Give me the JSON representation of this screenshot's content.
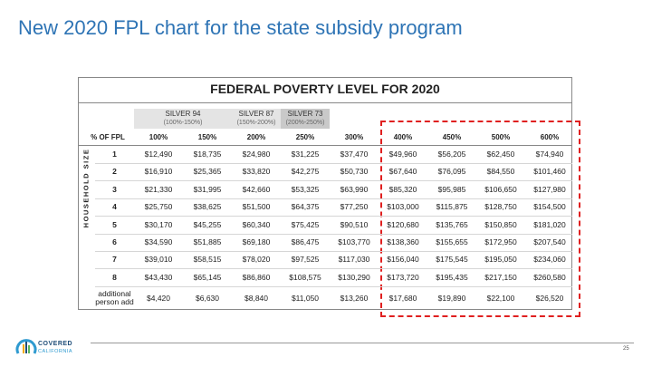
{
  "title": "New 2020 FPL chart for the state subsidy program",
  "table": {
    "heading": "FEDERAL POVERTY LEVEL FOR 2020",
    "side_label": "HOUSEHOLD SIZE",
    "bands": [
      {
        "name": "SILVER 94",
        "range": "(100%-150%)"
      },
      {
        "name": "SILVER 87",
        "range": "(150%-200%)"
      },
      {
        "name": "SILVER 73",
        "range": "(200%-250%)"
      }
    ],
    "columns": [
      "% OF FPL",
      "100%",
      "150%",
      "200%",
      "250%",
      "300%",
      "400%",
      "450%",
      "500%",
      "600%"
    ],
    "rows": [
      [
        "1",
        "$12,490",
        "$18,735",
        "$24,980",
        "$31,225",
        "$37,470",
        "$49,960",
        "$56,205",
        "$62,450",
        "$74,940"
      ],
      [
        "2",
        "$16,910",
        "$25,365",
        "$33,820",
        "$42,275",
        "$50,730",
        "$67,640",
        "$76,095",
        "$84,550",
        "$101,460"
      ],
      [
        "3",
        "$21,330",
        "$31,995",
        "$42,660",
        "$53,325",
        "$63,990",
        "$85,320",
        "$95,985",
        "$106,650",
        "$127,980"
      ],
      [
        "4",
        "$25,750",
        "$38,625",
        "$51,500",
        "$64,375",
        "$77,250",
        "$103,000",
        "$115,875",
        "$128,750",
        "$154,500"
      ],
      [
        "5",
        "$30,170",
        "$45,255",
        "$60,340",
        "$75,425",
        "$90,510",
        "$120,680",
        "$135,765",
        "$150,850",
        "$181,020"
      ],
      [
        "6",
        "$34,590",
        "$51,885",
        "$69,180",
        "$86,475",
        "$103,770",
        "$138,360",
        "$155,655",
        "$172,950",
        "$207,540"
      ],
      [
        "7",
        "$39,010",
        "$58,515",
        "$78,020",
        "$97,525",
        "$117,030",
        "$156,040",
        "$175,545",
        "$195,050",
        "$234,060"
      ],
      [
        "8",
        "$43,430",
        "$65,145",
        "$86,860",
        "$108,575",
        "$130,290",
        "$173,720",
        "$195,435",
        "$217,150",
        "$260,580"
      ],
      [
        "additional person add",
        "$4,420",
        "$6,630",
        "$8,840",
        "$11,050",
        "$13,260",
        "$17,680",
        "$19,890",
        "$22,100",
        "$26,520"
      ]
    ]
  },
  "footer": {
    "logo_top": "COVERED",
    "logo_bottom": "CALIFORNIA",
    "page": "25"
  }
}
